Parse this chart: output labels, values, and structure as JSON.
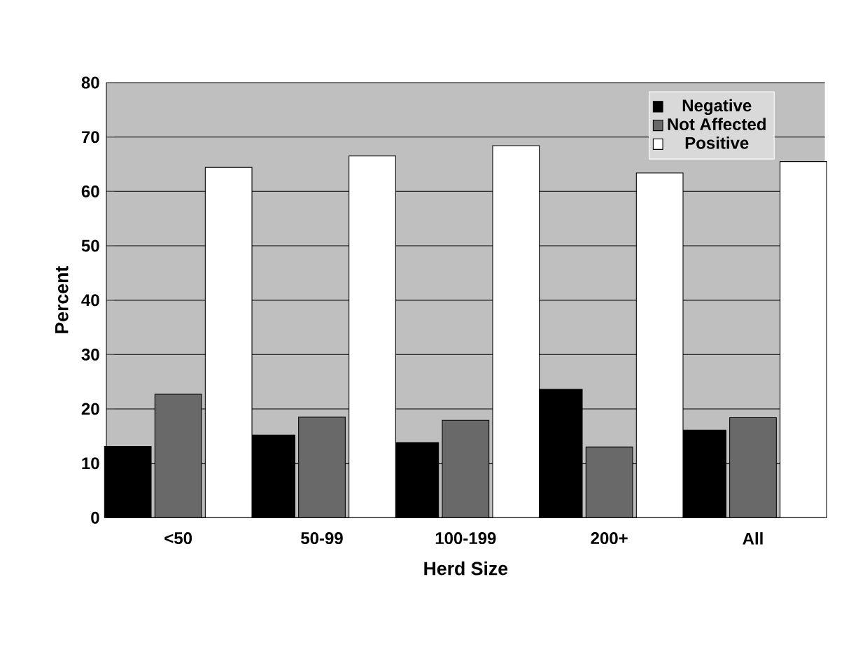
{
  "chart_data": {
    "type": "bar",
    "xlabel": "Herd Size",
    "ylabel": "Percent",
    "categories": [
      "<50",
      "50-99",
      "100-199",
      "200+",
      "All"
    ],
    "series": [
      {
        "name": "Negative",
        "color": "#000000",
        "values": [
          13.1,
          15.2,
          13.8,
          23.6,
          16.1
        ]
      },
      {
        "name": "Not Affected",
        "color": "#696969",
        "values": [
          22.7,
          18.5,
          17.9,
          13.0,
          18.4
        ]
      },
      {
        "name": "Positive",
        "color": "#ffffff",
        "values": [
          64.4,
          66.5,
          68.4,
          63.4,
          65.5
        ]
      }
    ],
    "ylim": [
      0,
      80
    ],
    "yticks": [
      0,
      10,
      20,
      30,
      40,
      50,
      60,
      70,
      80
    ],
    "grid": "y",
    "legend": "top right"
  }
}
